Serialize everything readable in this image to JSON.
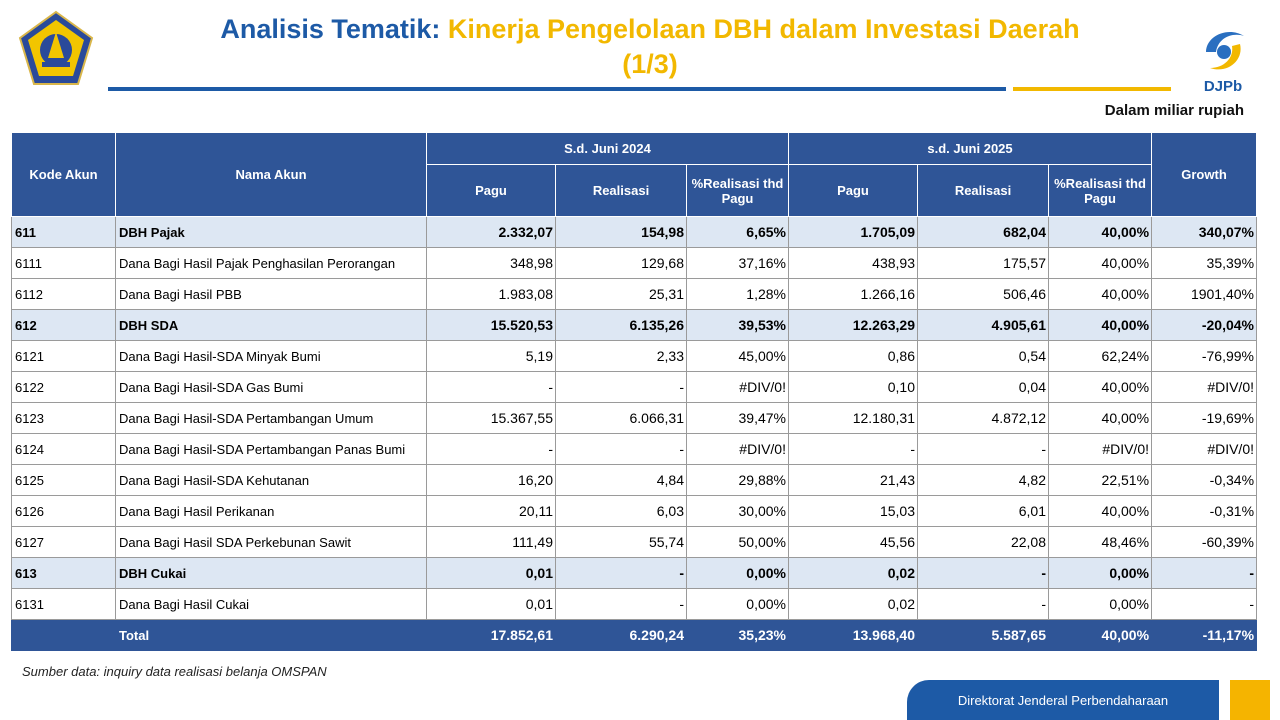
{
  "title": {
    "part1": "Analisis Tematik:",
    "part2": "Kinerja Pengelolaan DBH dalam Investasi Daerah",
    "part3": "(1/3)"
  },
  "unit_note": "Dalam miliar rupiah",
  "logo_right_text": "DJPb",
  "colors": {
    "header": "#2f5597",
    "group_row": "#dde7f3",
    "title_blue": "#1d5aa6",
    "title_gold": "#f2b800"
  },
  "table": {
    "headers": {
      "kode": "Kode Akun",
      "nama": "Nama Akun",
      "period1": "S.d. Juni 2024",
      "period2": "s.d. Juni 2025",
      "pagu": "Pagu",
      "realisasi": "Realisasi",
      "pct": "%Realisasi thd Pagu",
      "growth": "Growth"
    },
    "rows": [
      {
        "type": "group",
        "kode": "611",
        "nama": "DBH Pajak",
        "pagu24": "2.332,07",
        "real24": "154,98",
        "pct24": "6,65%",
        "pagu25": "1.705,09",
        "real25": "682,04",
        "pct25": "40,00%",
        "growth": "340,07%"
      },
      {
        "type": "item",
        "kode": "6111",
        "nama": "Dana Bagi Hasil Pajak Penghasilan Perorangan",
        "pagu24": "348,98",
        "real24": "129,68",
        "pct24": "37,16%",
        "pagu25": "438,93",
        "real25": "175,57",
        "pct25": "40,00%",
        "growth": "35,39%"
      },
      {
        "type": "item",
        "kode": "6112",
        "nama": "Dana Bagi Hasil PBB",
        "pagu24": "1.983,08",
        "real24": "25,31",
        "pct24": "1,28%",
        "pagu25": "1.266,16",
        "real25": "506,46",
        "pct25": "40,00%",
        "growth": "1901,40%"
      },
      {
        "type": "group",
        "kode": "612",
        "nama": "DBH SDA",
        "pagu24": "15.520,53",
        "real24": "6.135,26",
        "pct24": "39,53%",
        "pagu25": "12.263,29",
        "real25": "4.905,61",
        "pct25": "40,00%",
        "growth": "-20,04%"
      },
      {
        "type": "item",
        "kode": "6121",
        "nama": "Dana Bagi Hasil-SDA Minyak Bumi",
        "pagu24": "5,19",
        "real24": "2,33",
        "pct24": "45,00%",
        "pagu25": "0,86",
        "real25": "0,54",
        "pct25": "62,24%",
        "growth": "-76,99%"
      },
      {
        "type": "item",
        "kode": "6122",
        "nama": "Dana Bagi Hasil-SDA Gas Bumi",
        "pagu24": "-",
        "real24": "-",
        "pct24": "#DIV/0!",
        "pagu25": "0,10",
        "real25": "0,04",
        "pct25": "40,00%",
        "growth": "#DIV/0!"
      },
      {
        "type": "item",
        "kode": "6123",
        "nama": "Dana Bagi Hasil-SDA Pertambangan Umum",
        "pagu24": "15.367,55",
        "real24": "6.066,31",
        "pct24": "39,47%",
        "pagu25": "12.180,31",
        "real25": "4.872,12",
        "pct25": "40,00%",
        "growth": "-19,69%"
      },
      {
        "type": "item",
        "kode": "6124",
        "nama": "Dana Bagi Hasil-SDA Pertambangan Panas Bumi",
        "pagu24": "-",
        "real24": "-",
        "pct24": "#DIV/0!",
        "pagu25": "-",
        "real25": "-",
        "pct25": "#DIV/0!",
        "growth": "#DIV/0!"
      },
      {
        "type": "item",
        "kode": "6125",
        "nama": "Dana Bagi Hasil-SDA Kehutanan",
        "pagu24": "16,20",
        "real24": "4,84",
        "pct24": "29,88%",
        "pagu25": "21,43",
        "real25": "4,82",
        "pct25": "22,51%",
        "growth": "-0,34%"
      },
      {
        "type": "item",
        "kode": "6126",
        "nama": "Dana Bagi Hasil Perikanan",
        "pagu24": "20,11",
        "real24": "6,03",
        "pct24": "30,00%",
        "pagu25": "15,03",
        "real25": "6,01",
        "pct25": "40,00%",
        "growth": "-0,31%"
      },
      {
        "type": "item",
        "kode": "6127",
        "nama": "Dana Bagi Hasil SDA Perkebunan Sawit",
        "pagu24": "111,49",
        "real24": "55,74",
        "pct24": "50,00%",
        "pagu25": "45,56",
        "real25": "22,08",
        "pct25": "48,46%",
        "growth": "-60,39%"
      },
      {
        "type": "group",
        "kode": "613",
        "nama": "DBH Cukai",
        "pagu24": "0,01",
        "real24": "-",
        "pct24": "0,00%",
        "pagu25": "0,02",
        "real25": "-",
        "pct25": "0,00%",
        "growth": "-"
      },
      {
        "type": "item",
        "kode": "6131",
        "nama": "Dana Bagi Hasil Cukai",
        "pagu24": "0,01",
        "real24": "-",
        "pct24": "0,00%",
        "pagu25": "0,02",
        "real25": "-",
        "pct25": "0,00%",
        "growth": "-"
      },
      {
        "type": "total",
        "kode": "",
        "nama": "Total",
        "pagu24": "17.852,61",
        "real24": "6.290,24",
        "pct24": "35,23%",
        "pagu25": "13.968,40",
        "real25": "5.587,65",
        "pct25": "40,00%",
        "growth": "-11,17%"
      }
    ]
  },
  "source_note": "Sumber data: inquiry data realisasi belanja OMSPAN",
  "footer_text": "Direktorat Jenderal Perbendaharaan"
}
